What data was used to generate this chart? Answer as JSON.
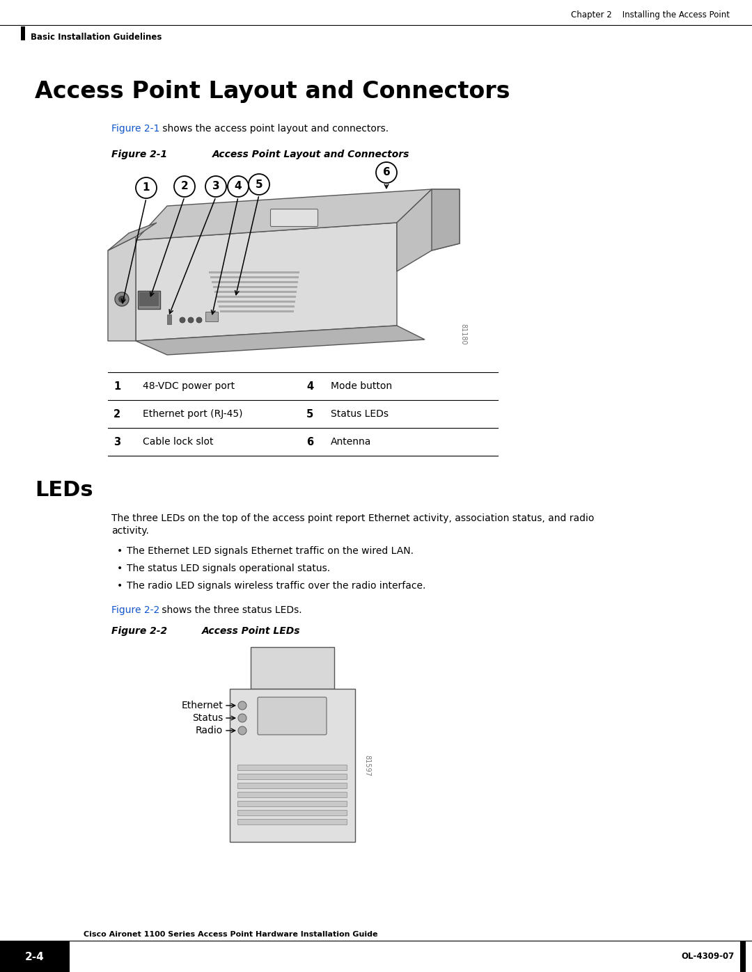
{
  "page_bg": "#ffffff",
  "header_text_right": "Chapter 2    Installing the Access Point",
  "header_bar_text": "Basic Installation Guidelines",
  "section1_title": "Access Point Layout and Connectors",
  "section1_intro_link": "Figure 2-1",
  "section1_intro_rest": " shows the access point layout and connectors.",
  "fig1_label": "Figure 2-1",
  "fig1_title": "Access Point Layout and Connectors",
  "table_rows": [
    [
      "1",
      "48-VDC power port",
      "4",
      "Mode button"
    ],
    [
      "2",
      "Ethernet port (RJ-45)",
      "5",
      "Status LEDs"
    ],
    [
      "3",
      "Cable lock slot",
      "6",
      "Antenna"
    ]
  ],
  "section2_title": "LEDs",
  "section2_para1": "The three LEDs on the top of the access point report Ethernet activity, association status, and radio",
  "section2_para2": "activity.",
  "bullets": [
    "The Ethernet LED signals Ethernet traffic on the wired LAN.",
    "The status LED signals operational status.",
    "The radio LED signals wireless traffic over the radio interface."
  ],
  "section2_fig_intro_link": "Figure 2-2",
  "section2_fig_intro_rest": " shows the three status LEDs.",
  "fig2_label": "Figure 2-2",
  "fig2_title": "Access Point LEDs",
  "led_labels": [
    "Ethernet",
    "Status",
    "Radio"
  ],
  "footer_guide_text": "Cisco Aironet 1100 Series Access Point Hardware Installation Guide",
  "footer_page": "2-4",
  "footer_right": "OL-4309-07",
  "link_color": "#1155cc",
  "text_color": "#000000"
}
